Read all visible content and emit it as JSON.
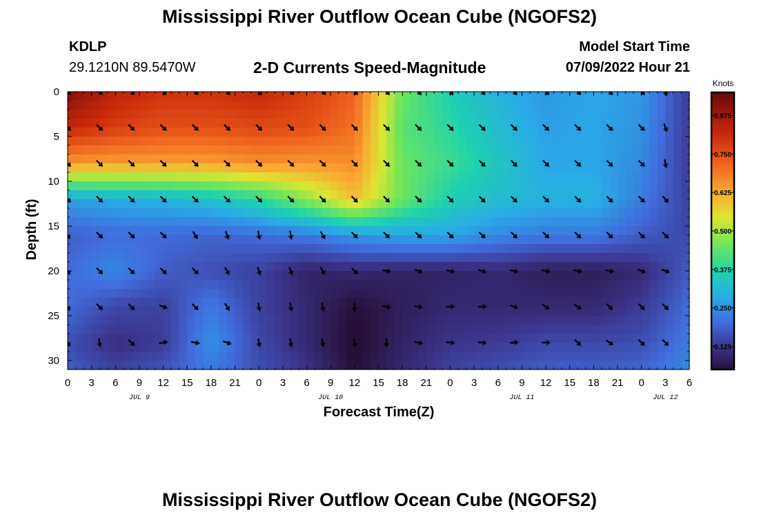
{
  "header": {
    "title": "Mississippi River Outflow Ocean Cube (NGOFS2)",
    "station_id": "KDLP",
    "station_coords": "29.1210N  89.5470W",
    "subtitle": "2-D Currents Speed-Magnitude",
    "model_start_label": "Model Start Time",
    "model_start_value": "07/09/2022 Hour 21"
  },
  "footer": {
    "title": "Mississippi River Outflow Ocean Cube (NGOFS2)"
  },
  "chart_data": {
    "type": "heatmap",
    "title": "2-D Currents Speed-Magnitude",
    "xlabel": "Forecast Time(Z)",
    "ylabel": "Depth (ft)",
    "x_tick_labels": [
      "0",
      "3",
      "6",
      "9",
      "12",
      "15",
      "18",
      "21",
      "0",
      "3",
      "6",
      "9",
      "12",
      "15",
      "18",
      "21",
      "0",
      "3",
      "6",
      "9",
      "12",
      "15",
      "18",
      "21",
      "0",
      "3",
      "6"
    ],
    "x_range_hours": [
      0,
      78
    ],
    "date_labels": [
      {
        "text": "JUL 9",
        "hour": 9
      },
      {
        "text": "JUL 10",
        "hour": 33
      },
      {
        "text": "JUL 11",
        "hour": 57
      },
      {
        "text": "JUL 12",
        "hour": 75
      }
    ],
    "y_tick_labels": [
      "0",
      "5",
      "10",
      "15",
      "20",
      "25",
      "30"
    ],
    "ylim": [
      31,
      0
    ],
    "colorbar": {
      "unit": "Knots",
      "range": [
        0.05,
        0.95
      ],
      "tick_labels": [
        "0.875",
        "0.750",
        "0.625",
        "0.500",
        "0.375",
        "0.250",
        "0.125"
      ],
      "tick_values": [
        0.875,
        0.75,
        0.625,
        0.5,
        0.375,
        0.25,
        0.125
      ]
    },
    "grid_times_hours": [
      0,
      6,
      12,
      18,
      24,
      30,
      36,
      42,
      48,
      54,
      60,
      66,
      72,
      78
    ],
    "grid_depths_ft": [
      0,
      4,
      8,
      12,
      16,
      20,
      24,
      28,
      31
    ],
    "speed_knots": [
      [
        0.92,
        0.83,
        0.8,
        0.8,
        0.82,
        0.78,
        0.72,
        0.45,
        0.36,
        0.3,
        0.26,
        0.28,
        0.26,
        0.13
      ],
      [
        0.82,
        0.78,
        0.75,
        0.75,
        0.76,
        0.75,
        0.7,
        0.43,
        0.38,
        0.32,
        0.27,
        0.28,
        0.25,
        0.13
      ],
      [
        0.65,
        0.64,
        0.64,
        0.64,
        0.66,
        0.65,
        0.66,
        0.45,
        0.4,
        0.34,
        0.28,
        0.28,
        0.24,
        0.13
      ],
      [
        0.27,
        0.29,
        0.3,
        0.33,
        0.38,
        0.48,
        0.6,
        0.45,
        0.36,
        0.32,
        0.3,
        0.3,
        0.22,
        0.14
      ],
      [
        0.18,
        0.2,
        0.2,
        0.19,
        0.2,
        0.22,
        0.26,
        0.28,
        0.28,
        0.24,
        0.22,
        0.22,
        0.18,
        0.15
      ],
      [
        0.2,
        0.24,
        0.18,
        0.16,
        0.14,
        0.09,
        0.1,
        0.09,
        0.09,
        0.1,
        0.08,
        0.08,
        0.1,
        0.18
      ],
      [
        0.2,
        0.15,
        0.14,
        0.22,
        0.14,
        0.1,
        0.05,
        0.08,
        0.1,
        0.1,
        0.1,
        0.1,
        0.13,
        0.2
      ],
      [
        0.16,
        0.11,
        0.13,
        0.25,
        0.15,
        0.1,
        0.04,
        0.09,
        0.12,
        0.13,
        0.15,
        0.15,
        0.16,
        0.22
      ],
      [
        0.18,
        0.14,
        0.17,
        0.22,
        0.16,
        0.12,
        0.05,
        0.1,
        0.14,
        0.16,
        0.18,
        0.18,
        0.19,
        0.24
      ]
    ],
    "vector_times_hours": [
      0,
      4,
      8,
      12,
      16,
      20,
      24,
      28,
      32,
      36,
      40,
      44,
      48,
      52,
      56,
      60,
      64,
      68,
      72,
      75
    ],
    "vector_depths_ft": [
      0,
      4,
      8,
      12,
      16,
      20,
      24,
      28
    ],
    "vector_direction_deg": [
      [
        135,
        135,
        135,
        135,
        135,
        135,
        135,
        135,
        135,
        135,
        135,
        135,
        135,
        135,
        135,
        135,
        135,
        135,
        135,
        160
      ],
      [
        135,
        135,
        135,
        135,
        135,
        135,
        135,
        135,
        135,
        135,
        135,
        135,
        135,
        135,
        135,
        135,
        135,
        135,
        135,
        160
      ],
      [
        135,
        135,
        135,
        135,
        135,
        135,
        135,
        135,
        135,
        135,
        135,
        135,
        135,
        135,
        135,
        135,
        135,
        135,
        135,
        170
      ],
      [
        135,
        135,
        135,
        135,
        135,
        135,
        135,
        135,
        135,
        135,
        135,
        135,
        135,
        135,
        135,
        135,
        135,
        135,
        135,
        140
      ],
      [
        150,
        135,
        135,
        135,
        150,
        160,
        170,
        170,
        150,
        135,
        135,
        135,
        135,
        135,
        135,
        135,
        135,
        135,
        135,
        135
      ],
      [
        150,
        135,
        135,
        135,
        135,
        150,
        160,
        160,
        150,
        135,
        100,
        110,
        100,
        105,
        100,
        100,
        100,
        100,
        110,
        110
      ],
      [
        150,
        135,
        135,
        110,
        135,
        150,
        170,
        170,
        170,
        180,
        100,
        100,
        90,
        90,
        110,
        125,
        125,
        135,
        135,
        135
      ],
      [
        150,
        170,
        135,
        80,
        100,
        110,
        170,
        170,
        170,
        170,
        180,
        100,
        95,
        95,
        85,
        90,
        135,
        125,
        135,
        135
      ]
    ]
  }
}
